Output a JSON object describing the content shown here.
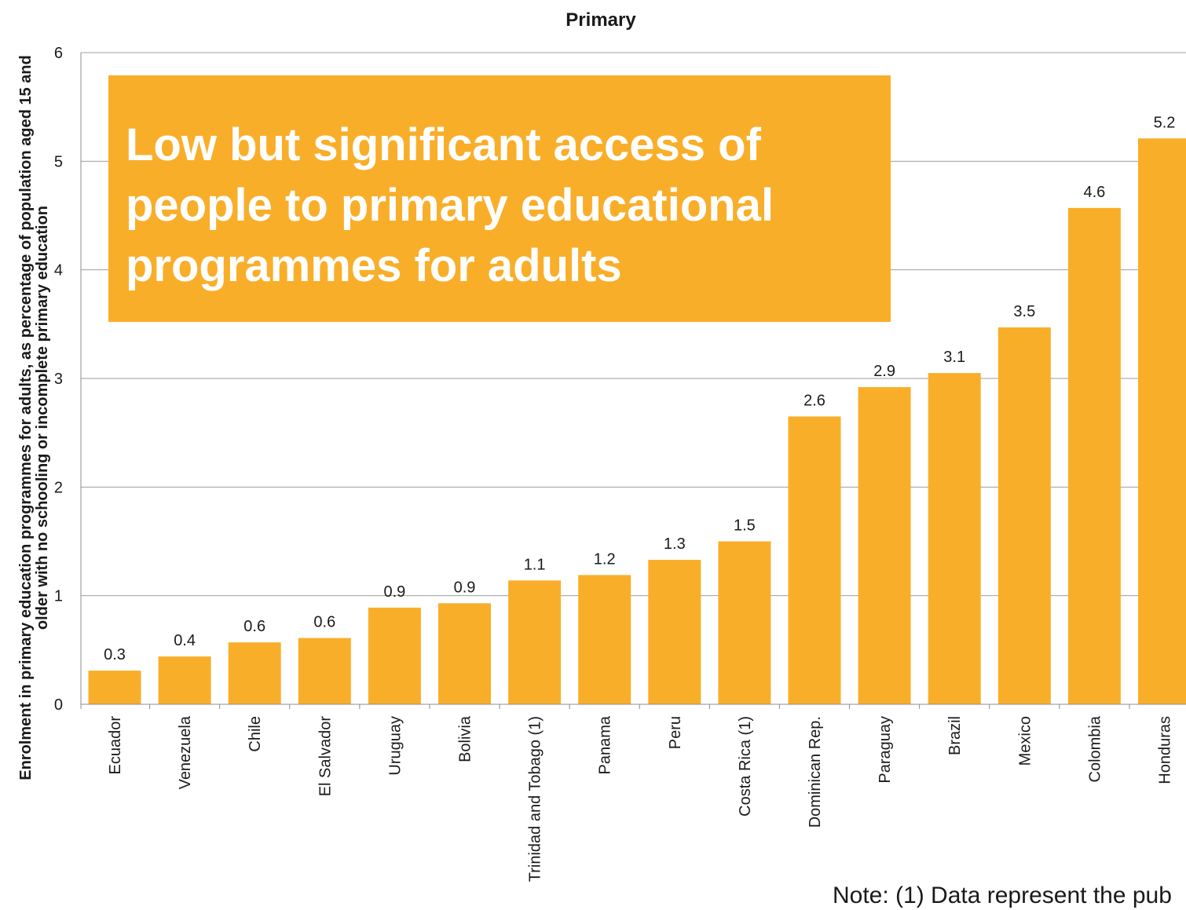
{
  "chart_data": {
    "type": "bar",
    "title": "Primary",
    "ylabel": "Enrolment in primary education programmes for adults, as percentage of population aged 15 and older with no schooling or incomplete primary education",
    "xlabel": "",
    "ylim": [
      0,
      6
    ],
    "yticks": [
      "0",
      "1",
      "2",
      "3",
      "4",
      "5",
      "6"
    ],
    "grid": true,
    "bar_color": "#f9ae2a",
    "categories": [
      "Ecuador",
      "Venezuela",
      "Chile",
      "El Salvador",
      "Uruguay",
      "Bolivia",
      "Trinidad and Tobago (1)",
      "Panama",
      "Peru",
      "Costa Rica (1)",
      "Dominican Rep.",
      "Paraguay",
      "Brazil",
      "Mexico",
      "Colombia",
      "Honduras"
    ],
    "values": [
      0.31,
      0.44,
      0.57,
      0.61,
      0.89,
      0.93,
      1.14,
      1.19,
      1.33,
      1.5,
      2.65,
      2.92,
      3.05,
      3.47,
      4.57,
      5.21
    ],
    "data_labels": [
      "0.3",
      "0.4",
      "0.6",
      "0.6",
      "0.9",
      "0.9",
      "1.1",
      "1.2",
      "1.3",
      "1.5",
      "2.6",
      "2.9",
      "3.1",
      "3.5",
      "4.6",
      "5.2"
    ]
  },
  "callout": {
    "text": "Low but significant access of people to primary educational programmes for adults",
    "color": "#f9ae2a"
  },
  "note": "Note: (1) Data represent the pub"
}
